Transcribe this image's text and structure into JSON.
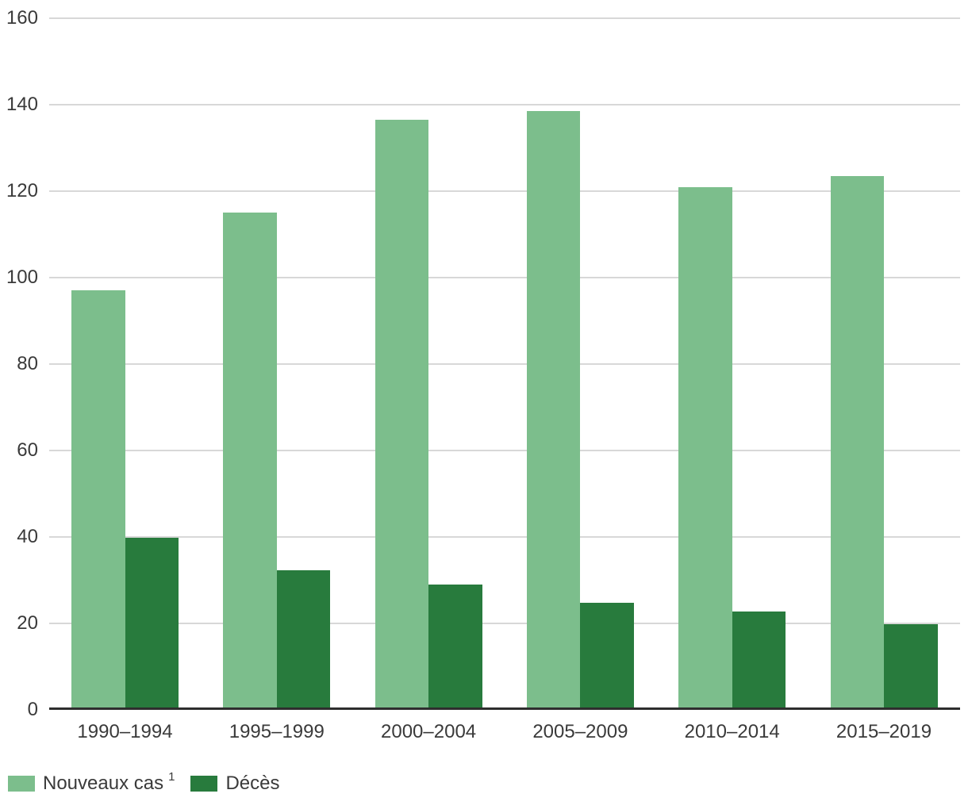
{
  "chart_data": {
    "type": "bar",
    "title": "",
    "categories": [
      "1990–1994",
      "1995–1999",
      "2000–2004",
      "2005–2009",
      "2010–2014",
      "2015–2019"
    ],
    "series": [
      {
        "name": "Nouveaux cas",
        "superscript": "1",
        "color": "#7CBE8C",
        "values": [
          97,
          115,
          136.5,
          138.5,
          121,
          123.5
        ]
      },
      {
        "name": "Décès",
        "superscript": "",
        "color": "#287B3D",
        "values": [
          39.8,
          32.3,
          29,
          24.8,
          22.7,
          19.8
        ]
      }
    ],
    "xlabel": "",
    "ylabel": "",
    "ylim": [
      0,
      160
    ],
    "yticks": [
      0,
      20,
      40,
      60,
      80,
      100,
      120,
      140,
      160
    ],
    "grid": true,
    "legend_position": "bottom-left",
    "colors": {
      "gridline": "#d8d8d8",
      "axis": "#2e2e2e",
      "text": "#3a3a3a",
      "background": "#ffffff"
    }
  }
}
